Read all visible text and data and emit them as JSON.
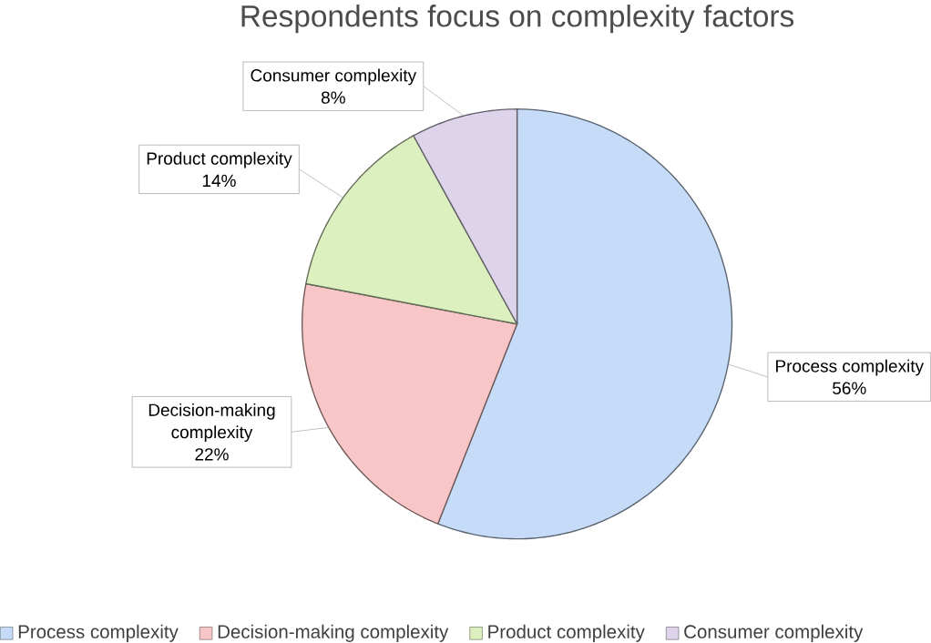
{
  "chart_data": {
    "type": "pie",
    "title": "Respondents  focus on complexity  factors",
    "categories": [
      "Process complexity",
      "Decision-making complexity",
      "Product complexity",
      "Consumer complexity"
    ],
    "values": [
      56,
      22,
      14,
      8
    ],
    "value_labels": [
      "56%",
      "22%",
      "14%",
      "8%"
    ],
    "colors": [
      "#c6dbf7",
      "#f8c6c6",
      "#dcf0bf",
      "#ddd3ea"
    ],
    "legend": "bottom"
  }
}
